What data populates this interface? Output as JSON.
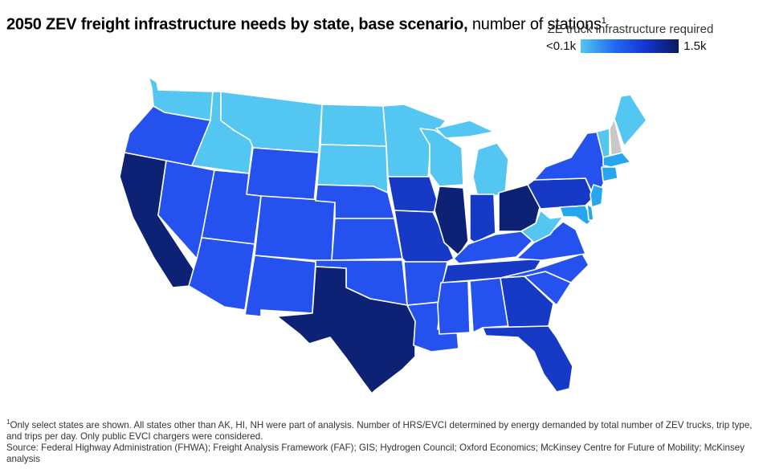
{
  "title": {
    "bold": "2050 ZEV freight infrastructure needs by state, base scenario,",
    "rest": "number of stations",
    "note_marker": "1"
  },
  "legend": {
    "title": "ZE truck infrastructure required",
    "min_label": "<0.1k",
    "max_label": "1.5k"
  },
  "colors": {
    "very_light": "#53c6f2",
    "light": "#26a6ee",
    "medium": "#2552ee",
    "dark": "#1639c6",
    "darkest": "#0d2274",
    "excluded": "#c8c8c8",
    "border": "#ffffff"
  },
  "map_data": {
    "type": "choropleth",
    "region": "Contiguous United States",
    "states": [
      {
        "state": "WA",
        "level": "very_light"
      },
      {
        "state": "OR",
        "level": "medium"
      },
      {
        "state": "CA",
        "level": "darkest"
      },
      {
        "state": "ID",
        "level": "very_light"
      },
      {
        "state": "NV",
        "level": "medium"
      },
      {
        "state": "MT",
        "level": "very_light"
      },
      {
        "state": "WY",
        "level": "medium"
      },
      {
        "state": "UT",
        "level": "medium"
      },
      {
        "state": "AZ",
        "level": "medium"
      },
      {
        "state": "CO",
        "level": "medium"
      },
      {
        "state": "NM",
        "level": "medium"
      },
      {
        "state": "ND",
        "level": "very_light"
      },
      {
        "state": "SD",
        "level": "very_light"
      },
      {
        "state": "NE",
        "level": "medium"
      },
      {
        "state": "KS",
        "level": "medium"
      },
      {
        "state": "OK",
        "level": "medium"
      },
      {
        "state": "TX",
        "level": "darkest"
      },
      {
        "state": "MN",
        "level": "very_light"
      },
      {
        "state": "IA",
        "level": "dark"
      },
      {
        "state": "MO",
        "level": "dark"
      },
      {
        "state": "AR",
        "level": "medium"
      },
      {
        "state": "LA",
        "level": "medium"
      },
      {
        "state": "WI",
        "level": "very_light"
      },
      {
        "state": "IL",
        "level": "darkest"
      },
      {
        "state": "MI",
        "level": "very_light"
      },
      {
        "state": "IN",
        "level": "dark"
      },
      {
        "state": "OH",
        "level": "darkest"
      },
      {
        "state": "KY",
        "level": "medium"
      },
      {
        "state": "TN",
        "level": "dark"
      },
      {
        "state": "MS",
        "level": "medium"
      },
      {
        "state": "AL",
        "level": "medium"
      },
      {
        "state": "GA",
        "level": "dark"
      },
      {
        "state": "FL",
        "level": "dark"
      },
      {
        "state": "SC",
        "level": "medium"
      },
      {
        "state": "NC",
        "level": "medium"
      },
      {
        "state": "VA",
        "level": "medium"
      },
      {
        "state": "WV",
        "level": "very_light"
      },
      {
        "state": "PA",
        "level": "dark"
      },
      {
        "state": "NY",
        "level": "medium"
      },
      {
        "state": "VT",
        "level": "very_light"
      },
      {
        "state": "NH",
        "level": "excluded"
      },
      {
        "state": "ME",
        "level": "very_light"
      },
      {
        "state": "MA",
        "level": "light"
      },
      {
        "state": "CT",
        "level": "light"
      },
      {
        "state": "NJ",
        "level": "light"
      },
      {
        "state": "MD",
        "level": "light"
      },
      {
        "state": "DE",
        "level": "light"
      }
    ]
  },
  "footnote": {
    "marker": "1",
    "line1": "Only select states are shown. All states other than AK, HI, NH were part of analysis. Number of HRS/EVCI determined by energy demanded by total number of ZEV trucks, trip type, and trips per day. Only public EVCI chargers were considered.",
    "line2": "Source: Federal Highway Administration (FHWA); Freight Analysis Framework (FAF); GIS; Hydrogen Council; Oxford Economics; McKinsey Centre for Future of Mobility; McKinsey analysis"
  }
}
